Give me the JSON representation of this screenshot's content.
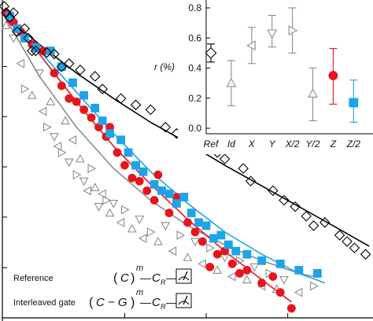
{
  "chart_data": [
    {
      "type": "scatter",
      "title": "",
      "xlabel": "",
      "ylabel": "",
      "xlim": [
        0,
        100
      ],
      "ylim": [
        0,
        1
      ],
      "x_ticks_visible": [
        33,
        55,
        77
      ],
      "y_ticks_visible": [
        0.158,
        0.317,
        0.475,
        0.633,
        0.791
      ],
      "grid": false,
      "legend_placement": "bottom-left",
      "legend": [
        {
          "label": "Reference",
          "sequence": [
            "(",
            "C",
            ")",
            "m",
            "—",
            "C",
            "R",
            "—"
          ],
          "marker": "diamond-open",
          "color": "#000000"
        },
        {
          "label": "Interleaved gate",
          "sequence": [
            "(",
            "C − G",
            ")",
            "m",
            "—",
            "C",
            "R",
            "—"
          ],
          "marker": "triangle-open",
          "color": "#8c8c8c"
        }
      ],
      "series": [
        {
          "color": "#000000",
          "marker": "diamond-open",
          "fit_color": "#000000",
          "points": [
            [
              0.5,
              0.98
            ],
            [
              1,
              0.96
            ],
            [
              2,
              0.945
            ],
            [
              3,
              0.96
            ],
            [
              4,
              0.9
            ],
            [
              6,
              0.91
            ],
            [
              7,
              0.88
            ],
            [
              8,
              0.84
            ],
            [
              9,
              0.84
            ],
            [
              12,
              0.835
            ],
            [
              14,
              0.83
            ],
            [
              16,
              0.79
            ],
            [
              18,
              0.8
            ],
            [
              21,
              0.78
            ],
            [
              25,
              0.76
            ],
            [
              27,
              0.72
            ],
            [
              32,
              0.69
            ],
            [
              36,
              0.67
            ],
            [
              40,
              0.655
            ],
            [
              44,
              0.6
            ],
            [
              47,
              0.58
            ],
            [
              51,
              0.56
            ],
            [
              58,
              0.52
            ],
            [
              60,
              0.5
            ],
            [
              65,
              0.47
            ],
            [
              67,
              0.43
            ],
            [
              73,
              0.4
            ],
            [
              76,
              0.37
            ],
            [
              79,
              0.35
            ],
            [
              82,
              0.32
            ],
            [
              84,
              0.29
            ],
            [
              87,
              0.3
            ],
            [
              91,
              0.26
            ],
            [
              93,
              0.24
            ],
            [
              95,
              0.22
            ],
            [
              98,
              0.2
            ]
          ],
          "fit": [
            [
              0,
              0.96
            ],
            [
              10,
              0.86
            ],
            [
              20,
              0.77
            ],
            [
              30,
              0.69
            ],
            [
              40,
              0.615
            ],
            [
              50,
              0.55
            ],
            [
              60,
              0.48
            ],
            [
              70,
              0.415
            ],
            [
              80,
              0.35
            ],
            [
              90,
              0.285
            ],
            [
              99,
              0.225
            ]
          ]
        },
        {
          "color": "#8c8c8c",
          "marker": "triangle-open",
          "fit_color": "#8c8c8c",
          "points": [
            [
              1,
              0.92
            ],
            [
              3,
              0.88
            ],
            [
              5,
              0.8
            ],
            [
              6,
              0.72
            ],
            [
              8,
              0.7
            ],
            [
              10,
              0.77
            ],
            [
              11,
              0.65
            ],
            [
              12,
              0.6
            ],
            [
              13,
              0.68
            ],
            [
              14,
              0.57
            ],
            [
              15,
              0.54
            ],
            [
              16,
              0.52
            ],
            [
              17,
              0.62
            ],
            [
              18,
              0.49
            ],
            [
              19,
              0.56
            ],
            [
              20,
              0.45
            ],
            [
              21,
              0.5
            ],
            [
              22,
              0.43
            ],
            [
              23,
              0.4
            ],
            [
              24,
              0.47
            ],
            [
              25,
              0.41
            ],
            [
              26,
              0.35
            ],
            [
              27,
              0.39
            ],
            [
              28,
              0.37
            ],
            [
              29,
              0.33
            ],
            [
              30,
              0.36
            ],
            [
              32,
              0.3
            ],
            [
              33,
              0.34
            ],
            [
              35,
              0.28
            ],
            [
              37,
              0.31
            ],
            [
              38,
              0.25
            ],
            [
              40,
              0.27
            ],
            [
              42,
              0.24
            ],
            [
              44,
              0.29
            ],
            [
              46,
              0.21
            ],
            [
              48,
              0.26
            ],
            [
              50,
              0.19
            ],
            [
              52,
              0.24
            ],
            [
              54,
              0.17
            ],
            [
              56,
              0.22
            ],
            [
              58,
              0.15
            ],
            [
              60,
              0.19
            ],
            [
              62,
              0.13
            ],
            [
              64,
              0.18
            ],
            [
              66,
              0.12
            ],
            [
              68,
              0.16
            ],
            [
              70,
              0.1
            ],
            [
              72,
              0.14
            ],
            [
              74,
              0.09
            ],
            [
              76,
              0.12
            ],
            [
              80,
              0.08
            ],
            [
              84,
              0.1
            ]
          ],
          "fit": [
            [
              0,
              0.96
            ],
            [
              10,
              0.76
            ],
            [
              20,
              0.6
            ],
            [
              30,
              0.47
            ],
            [
              40,
              0.37
            ],
            [
              50,
              0.29
            ],
            [
              60,
              0.23
            ],
            [
              70,
              0.18
            ],
            [
              80,
              0.14
            ],
            [
              84,
              0.13
            ]
          ]
        },
        {
          "color": "#e8141c",
          "marker": "circle-filled",
          "fit_color": "#e8141c",
          "points": [
            [
              1,
              0.96
            ],
            [
              2,
              0.94
            ],
            [
              3,
              0.93
            ],
            [
              5,
              0.9
            ],
            [
              8,
              0.86
            ],
            [
              11,
              0.84
            ],
            [
              14,
              0.77
            ],
            [
              16,
              0.73
            ],
            [
              18,
              0.69
            ],
            [
              20,
              0.68
            ],
            [
              22,
              0.655
            ],
            [
              24,
              0.63
            ],
            [
              26,
              0.6
            ],
            [
              28,
              0.57
            ],
            [
              29,
              0.6
            ],
            [
              31,
              0.52
            ],
            [
              33,
              0.48
            ],
            [
              35,
              0.44
            ],
            [
              37,
              0.43
            ],
            [
              39,
              0.4
            ],
            [
              41,
              0.37
            ],
            [
              42,
              0.45
            ],
            [
              45,
              0.33
            ],
            [
              47,
              0.38
            ],
            [
              50,
              0.3
            ],
            [
              52,
              0.27
            ],
            [
              54,
              0.24
            ],
            [
              56,
              0.16
            ],
            [
              58,
              0.2
            ],
            [
              60,
              0.21
            ],
            [
              62,
              0.17
            ],
            [
              64,
              0.14
            ],
            [
              66,
              0.15
            ],
            [
              70,
              0.11
            ],
            [
              73,
              0.13
            ],
            [
              75,
              0.08
            ],
            [
              78,
              0.03
            ]
          ],
          "fit": [
            [
              0,
              0.96
            ],
            [
              10,
              0.83
            ],
            [
              20,
              0.68
            ],
            [
              30,
              0.54
            ],
            [
              40,
              0.42
            ],
            [
              50,
              0.31
            ],
            [
              60,
              0.21
            ],
            [
              70,
              0.12
            ],
            [
              78,
              0.05
            ]
          ]
        },
        {
          "color": "#1fa3e8",
          "marker": "square-filled",
          "fit_color": "#1fa3e8",
          "points": [
            [
              2,
              0.95
            ],
            [
              4,
              0.91
            ],
            [
              6,
              0.88
            ],
            [
              9,
              0.85
            ],
            [
              13,
              0.84
            ],
            [
              16,
              0.79
            ],
            [
              19,
              0.74
            ],
            [
              22,
              0.7
            ],
            [
              25,
              0.66
            ],
            [
              27,
              0.62
            ],
            [
              29,
              0.58
            ],
            [
              32,
              0.56
            ],
            [
              34,
              0.52
            ],
            [
              36,
              0.48
            ],
            [
              38,
              0.46
            ],
            [
              41,
              0.42
            ],
            [
              43,
              0.4
            ],
            [
              45,
              0.39
            ],
            [
              47,
              0.36
            ],
            [
              49,
              0.38
            ],
            [
              51,
              0.33
            ],
            [
              53,
              0.3
            ],
            [
              55,
              0.29
            ],
            [
              57,
              0.25
            ],
            [
              59,
              0.26
            ],
            [
              61,
              0.23
            ],
            [
              63,
              0.21
            ],
            [
              66,
              0.2
            ],
            [
              70,
              0.18
            ],
            [
              75,
              0.17
            ],
            [
              80,
              0.15
            ],
            [
              85,
              0.14
            ]
          ],
          "fit": [
            [
              0,
              0.96
            ],
            [
              10,
              0.84
            ],
            [
              20,
              0.71
            ],
            [
              30,
              0.58
            ],
            [
              40,
              0.46
            ],
            [
              50,
              0.36
            ],
            [
              60,
              0.27
            ],
            [
              70,
              0.2
            ],
            [
              80,
              0.14
            ],
            [
              87,
              0.11
            ]
          ]
        }
      ]
    },
    {
      "type": "scatter",
      "title": "",
      "ylabel": "r (%)",
      "ylim": [
        -0.02,
        0.82
      ],
      "y_ticks": [
        "0.8",
        "0.6",
        "0.4",
        "0.2",
        "0.0"
      ],
      "y_tick_values": [
        0.8,
        0.6,
        0.4,
        0.2,
        0.0
      ],
      "categories": [
        "Ref",
        "Id",
        "X",
        "Y",
        "X/2",
        "Y/2",
        "Z",
        "Z/2"
      ],
      "values": [
        0.5,
        0.3,
        0.55,
        0.63,
        0.65,
        0.23,
        0.35,
        0.17
      ],
      "error_low": [
        0.44,
        0.15,
        0.43,
        0.54,
        0.5,
        0.05,
        0.16,
        0.04
      ],
      "error_high": [
        0.56,
        0.45,
        0.67,
        0.75,
        0.8,
        0.4,
        0.53,
        0.32
      ],
      "markers": [
        "diamond-open",
        "triangle-up-open",
        "triangle-left-open",
        "triangle-down-open",
        "triangle-right-open",
        "triangle-up-open",
        "circle-filled",
        "square-filled"
      ],
      "colors": [
        "#000000",
        "#8c8c8c",
        "#8c8c8c",
        "#8c8c8c",
        "#8c8c8c",
        "#8c8c8c",
        "#e8141c",
        "#1fa3e8"
      ],
      "grid": false
    }
  ]
}
